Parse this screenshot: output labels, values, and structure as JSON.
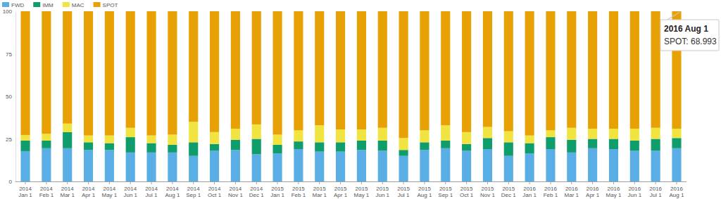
{
  "chart_data": {
    "type": "bar",
    "stacked": true,
    "grid": false,
    "legend": "top-left",
    "categories": [
      "2014 Jan 1",
      "2014 Feb 1",
      "2014 Mar 1",
      "2014 Apr 1",
      "2014 May 1",
      "2014 Jun 1",
      "2014 Jul 1",
      "2014 Aug 1",
      "2014 Sep 1",
      "2014 Oct 1",
      "2014 Nov 1",
      "2014 Dec 1",
      "2015 Jan 1",
      "2015 Feb 1",
      "2015 Mar 1",
      "2015 Apr 1",
      "2015 May 1",
      "2015 Jun 1",
      "2015 Jul 1",
      "2015 Aug 1",
      "2015 Sep 1",
      "2015 Oct 1",
      "2015 Nov 1",
      "2015 Dec 1",
      "2016 Jan 1",
      "2016 Feb 1",
      "2016 Mar 1",
      "2016 Apr 1",
      "2016 May 1",
      "2016 Jun 1",
      "2016 Jul 1",
      "2016 Aug 1"
    ],
    "series": [
      {
        "name": "FWD",
        "color": "#5aaee6",
        "values": [
          17.8,
          19.5,
          19.5,
          18.5,
          18.5,
          17,
          17,
          17,
          15,
          18,
          18.5,
          16,
          16.5,
          19,
          17.5,
          17.5,
          18.5,
          18,
          15,
          18.5,
          19.5,
          18,
          19,
          15,
          16.5,
          19,
          17,
          19.5,
          19,
          18,
          18,
          19.5
        ]
      },
      {
        "name": "IMM",
        "color": "#0f9d6c",
        "values": [
          6.2,
          4.5,
          9.5,
          4.5,
          4,
          9,
          5.5,
          4.5,
          8,
          4,
          6,
          9,
          5,
          4.5,
          5.5,
          5.5,
          5.5,
          6,
          3.5,
          4.5,
          4.5,
          4,
          6.5,
          8,
          6,
          7,
          7.5,
          5.5,
          6,
          6,
          7,
          6
        ]
      },
      {
        "name": "MAC",
        "color": "#f2e440",
        "values": [
          3.3,
          4,
          5,
          4,
          4.5,
          5.5,
          4.5,
          6,
          12,
          7,
          6.5,
          8.5,
          6,
          6.5,
          10,
          7.5,
          6.5,
          7.5,
          7,
          7,
          9,
          7,
          6.5,
          6.5,
          4.5,
          4,
          7,
          6,
          6,
          7,
          6.5,
          5.507
        ]
      },
      {
        "name": "SPOT",
        "color": "#e8a104",
        "values": [
          72.7,
          72,
          66,
          73,
          73,
          68.5,
          73,
          72.5,
          65,
          71,
          69,
          66.5,
          72.5,
          70,
          67,
          69.5,
          69.5,
          68.5,
          74.5,
          70,
          67,
          71,
          68,
          70.5,
          73,
          70,
          68.5,
          69,
          69,
          69,
          68.5,
          68.993
        ]
      }
    ],
    "ylim": [
      0,
      100
    ],
    "yticks": [
      0,
      25,
      50,
      75,
      100
    ],
    "annotations": [
      {
        "title": "2016 Aug 1",
        "text": "SPOT: 68.993"
      }
    ]
  }
}
